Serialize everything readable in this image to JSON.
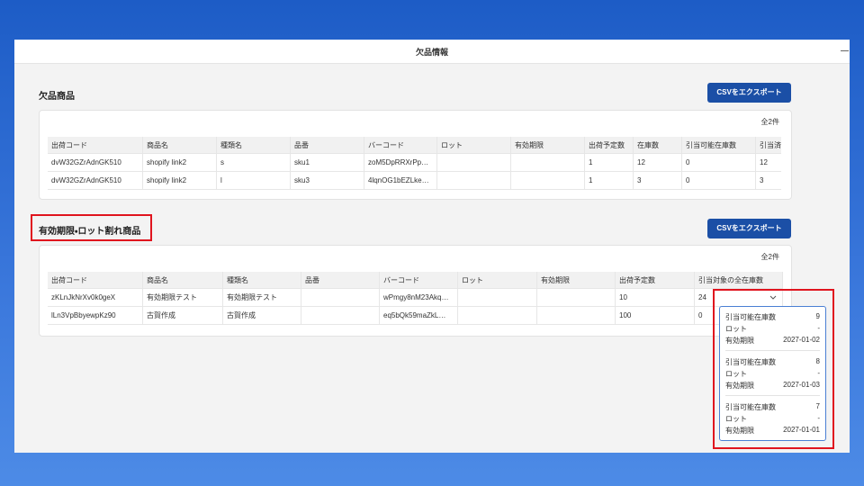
{
  "window": {
    "title": "欠品情報"
  },
  "sections": [
    {
      "title": "欠品商品",
      "button": "CSVをエクスポート",
      "count": "全2件",
      "columns": [
        "出荷コード",
        "商品名",
        "種類名",
        "品番",
        "バーコード",
        "ロット",
        "有効期限",
        "出荷予定数",
        "在庫数",
        "引当可能在庫数",
        "引当済"
      ],
      "rows": [
        [
          "dvW32GZrAdnGK510",
          "shopify link2",
          "s",
          "sku1",
          "zoM5DpRRXrPp…",
          null,
          null,
          1,
          12,
          0,
          12
        ],
        [
          "dvW32GZrAdnGK510",
          "shopify link2",
          "l",
          "sku3",
          "4lqnOG1bEZLke…",
          null,
          null,
          1,
          3,
          0,
          3
        ]
      ]
    },
    {
      "title": "有効期限・ロット割れ商品",
      "button": "CSVをエクスポート",
      "count": "全2件",
      "columns": [
        "出荷コード",
        "商品名",
        "種類名",
        "品番",
        "バーコード",
        "ロット",
        "有効期限",
        "出荷予定数",
        "引当対象の全在庫数"
      ],
      "rows": [
        [
          "zKLnJkNrXv0k0geX",
          "有効期限テスト",
          "有効期限テスト",
          null,
          "wPmgy8nM23Akq…",
          null,
          null,
          10,
          24
        ],
        [
          "lLn3VpBbyewpKz90",
          "古賀作成",
          "古賀作成",
          null,
          "eq5bQk59maZkL…",
          null,
          null,
          100,
          0
        ]
      ]
    }
  ],
  "popup": {
    "items": [
      {
        "stock_label": "引当可能在庫数",
        "stock": 9,
        "lot_label": "ロット",
        "lot": "-",
        "expiry_label": "有効期限",
        "expiry": "2027-01-02"
      },
      {
        "stock_label": "引当可能在庫数",
        "stock": 8,
        "lot_label": "ロット",
        "lot": "-",
        "expiry_label": "有効期限",
        "expiry": "2027-01-03"
      },
      {
        "stock_label": "引当可能在庫数",
        "stock": 7,
        "lot_label": "ロット",
        "lot": "-",
        "expiry_label": "有効期限",
        "expiry": "2027-01-01"
      }
    ]
  }
}
